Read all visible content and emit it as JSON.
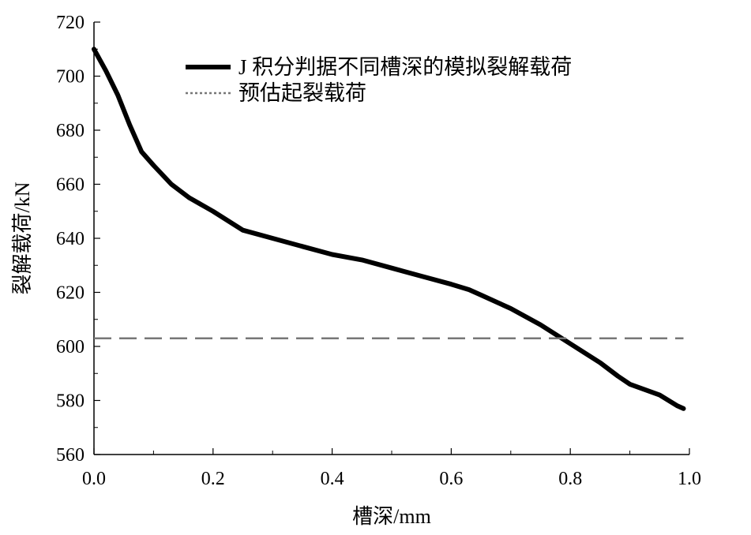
{
  "chart_data": {
    "type": "line",
    "title": "",
    "xlabel": "槽深/mm",
    "ylabel": "裂解载荷/kN",
    "xlim": [
      0.0,
      1.0
    ],
    "ylim": [
      560,
      720
    ],
    "x_ticks": [
      0.0,
      0.2,
      0.4,
      0.6,
      0.8,
      1.0
    ],
    "x_tick_labels": [
      "0.0",
      "0.2",
      "0.4",
      "0.6",
      "0.8",
      "1.0"
    ],
    "y_ticks": [
      560,
      580,
      600,
      620,
      640,
      660,
      680,
      700,
      720
    ],
    "y_tick_labels": [
      "560",
      "580",
      "600",
      "620",
      "640",
      "660",
      "680",
      "700",
      "720"
    ],
    "grid": false,
    "legend_position": "top-right",
    "series": [
      {
        "name": "J 积分判据不同槽深的模拟裂解载荷",
        "style": "solid",
        "color": "#000000",
        "x": [
          0.0,
          0.02,
          0.04,
          0.06,
          0.08,
          0.1,
          0.13,
          0.16,
          0.2,
          0.25,
          0.3,
          0.35,
          0.4,
          0.45,
          0.5,
          0.55,
          0.6,
          0.63,
          0.65,
          0.7,
          0.75,
          0.8,
          0.85,
          0.88,
          0.9,
          0.95,
          0.98,
          0.99
        ],
        "y": [
          710,
          702,
          693,
          682,
          672,
          667,
          660,
          655,
          650,
          643,
          640,
          637,
          634,
          632,
          629,
          626,
          623,
          621,
          619,
          614,
          608,
          601,
          594,
          589,
          586,
          582,
          578,
          577
        ]
      },
      {
        "name": "预估起裂载荷",
        "style": "dashed",
        "color": "#777777",
        "x": [
          0.0,
          0.99
        ],
        "y": [
          603,
          603
        ]
      }
    ]
  }
}
